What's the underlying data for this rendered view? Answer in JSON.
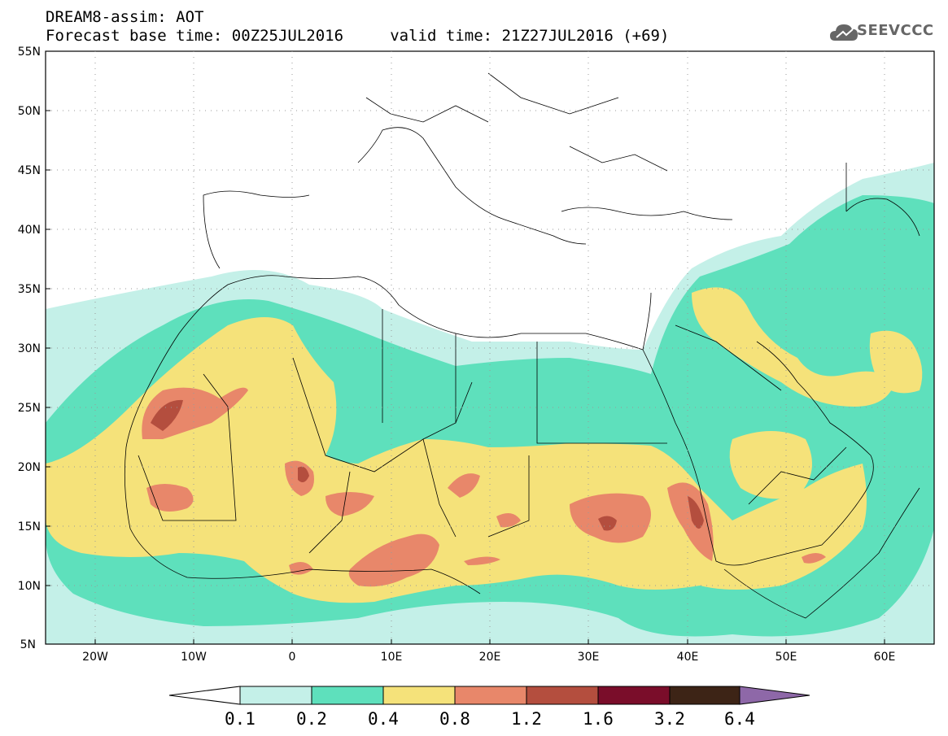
{
  "header": {
    "title_line1": "DREAM8-assim: AOT",
    "title_line2": "Forecast base time: 00Z25JUL2016     valid time: 21Z27JUL2016 (+69)"
  },
  "logo": {
    "text": "SEEVCCC",
    "icon": "cloud-icon"
  },
  "map": {
    "lat_labels": [
      "55N",
      "50N",
      "45N",
      "40N",
      "35N",
      "30N",
      "25N",
      "20N",
      "15N",
      "10N",
      "5N"
    ],
    "lon_labels": [
      "20W",
      "10W",
      "0",
      "10E",
      "20E",
      "30E",
      "40E",
      "50E",
      "60E"
    ],
    "lat_range": [
      5,
      55
    ],
    "lon_range": [
      -25,
      65
    ],
    "grid": "dotted"
  },
  "colorbar": {
    "labels": [
      "0.1",
      "0.2",
      "0.4",
      "0.8",
      "1.2",
      "1.6",
      "3.2",
      "6.4"
    ],
    "colors": [
      "#ffffff",
      "#c4f0e8",
      "#5ee0bc",
      "#f5e27a",
      "#e8876a",
      "#b44e3e",
      "#7a0d2a",
      "#3d2416",
      "#8e68a8"
    ]
  }
}
